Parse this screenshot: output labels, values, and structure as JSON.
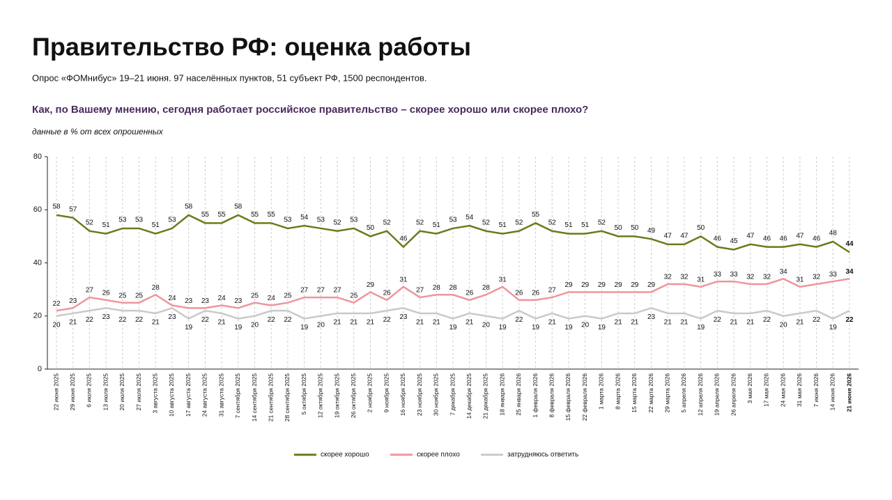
{
  "chart_data": {
    "type": "line",
    "title": "Правительство РФ: оценка работы",
    "subtitle": "Опрос «ФОМнибус» 19–21 июня. 97 населённых пунктов, 51 субъект РФ, 1500 респондентов.",
    "question": "Как, по Вашему мнению, сегодня работает российское правительство – скорее хорошо или скорее плохо?",
    "note": "данные в % от всех опрошенных",
    "categories": [
      "22 июня 2025",
      "29 июня 2025",
      "6 июля 2025",
      "13 июля 2025",
      "20 июля 2025",
      "27 июля 2025",
      "3 августа 2025",
      "10 августа 2025",
      "17 августа 2025",
      "24 августа 2025",
      "31 августа 2025",
      "7 сентября 2025",
      "14 сентября 2025",
      "21 сентября 2025",
      "28 сентября 2025",
      "5 октября 2025",
      "12 октября 2025",
      "19 октября 2025",
      "26 октября 2025",
      "2 ноября 2025",
      "9 ноября 2025",
      "16 ноября 2025",
      "23 ноября 2025",
      "30 ноября 2025",
      "7 декабря 2025",
      "14 декабря 2025",
      "21 декабря 2025",
      "18 января 2026",
      "25 января 2026",
      "1 февраля 2026",
      "8 февраля 2026",
      "15 февраля 2026",
      "22 февраля 2026",
      "1 марта 2026",
      "8 марта 2026",
      "15 марта 2026",
      "22 марта 2026",
      "29 марта 2026",
      "5 апреля 2026",
      "12 апреля 2026",
      "19 апреля 2026",
      "26 апреля 2026",
      "3 мая 2026",
      "17 мая 2026",
      "24 мая 2026",
      "31 мая 2026",
      "7 июня 2026",
      "14 июня 2026",
      "21 июня 2026"
    ],
    "series": [
      {
        "name": "скорее хорошо",
        "color": "#6b7a1a",
        "values": [
          58,
          57,
          52,
          51,
          53,
          53,
          51,
          53,
          58,
          55,
          55,
          58,
          55,
          55,
          53,
          54,
          53,
          52,
          53,
          50,
          52,
          46,
          52,
          51,
          53,
          54,
          52,
          51,
          52,
          55,
          52,
          51,
          51,
          52,
          50,
          50,
          49,
          47,
          47,
          50,
          46,
          45,
          47,
          46,
          46,
          47,
          46,
          48,
          44
        ]
      },
      {
        "name": "скорее плохо",
        "color": "#ef959b",
        "values": [
          22,
          23,
          27,
          26,
          25,
          25,
          28,
          24,
          23,
          23,
          24,
          23,
          25,
          24,
          25,
          27,
          27,
          27,
          25,
          29,
          26,
          31,
          27,
          28,
          28,
          26,
          28,
          31,
          26,
          26,
          27,
          29,
          29,
          29,
          29,
          29,
          29,
          32,
          32,
          31,
          33,
          33,
          32,
          32,
          34,
          31,
          32,
          33,
          34
        ]
      },
      {
        "name": "затрудняюсь ответить",
        "color": "#c9c9c9",
        "values": [
          20,
          21,
          22,
          23,
          22,
          22,
          21,
          23,
          19,
          22,
          21,
          19,
          20,
          22,
          22,
          19,
          20,
          21,
          21,
          21,
          22,
          23,
          21,
          21,
          19,
          21,
          20,
          19,
          22,
          19,
          21,
          19,
          20,
          19,
          21,
          21,
          23,
          21,
          21,
          19,
          22,
          21,
          21,
          22,
          20,
          21,
          22,
          19,
          22
        ]
      }
    ],
    "ylim": [
      0,
      80
    ],
    "yticks": [
      0,
      20,
      40,
      60,
      80
    ],
    "grid": true
  }
}
